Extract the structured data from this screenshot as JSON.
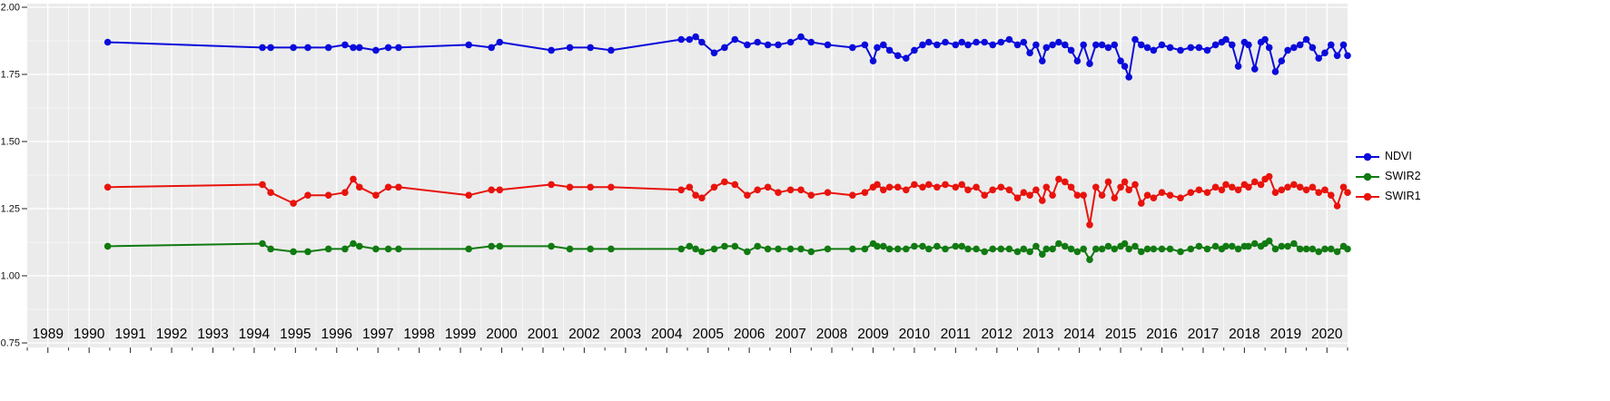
{
  "figure": {
    "bg": "#FFFFFF",
    "panel_bg": "#EBEBEB",
    "grid_major_color": "#FFFFFF",
    "grid_minor_color": "#F5F5F5",
    "tick_color": "#333333",
    "axis_label_color": "#111111",
    "x_label_color": "#000000"
  },
  "legend": {
    "items": [
      {
        "label": "NDVI",
        "color": "#0b0bdb"
      },
      {
        "label": "SWIR2",
        "color": "#117a11"
      },
      {
        "label": "SWIR1",
        "color": "#e8130c"
      }
    ]
  },
  "chart_data": {
    "type": "line",
    "title": "",
    "xlabel": "",
    "ylabel": "",
    "grid": true,
    "legend_position": "right",
    "ylim": [
      0.75,
      2.0
    ],
    "yticks": [
      0.75,
      1.0,
      1.25,
      1.5,
      1.75,
      2.0
    ],
    "x_tick_labels": [
      1989,
      1990,
      1991,
      1992,
      1993,
      1994,
      1995,
      1996,
      1997,
      1998,
      1999,
      2000,
      2001,
      2002,
      2003,
      2004,
      2005,
      2006,
      2007,
      2008,
      2009,
      2010,
      2011,
      2012,
      2013,
      2014,
      2015,
      2016,
      2017,
      2018,
      2019,
      2020
    ],
    "x": [
      1990.45,
      1994.2,
      1994.4,
      1994.95,
      1995.3,
      1995.8,
      1996.2,
      1996.4,
      1996.55,
      1996.95,
      1997.25,
      1997.5,
      1999.2,
      1999.75,
      1999.95,
      2001.2,
      2001.65,
      2002.15,
      2002.65,
      2004.35,
      2004.55,
      2004.7,
      2004.85,
      2005.15,
      2005.4,
      2005.65,
      2005.95,
      2006.2,
      2006.45,
      2006.7,
      2007.0,
      2007.25,
      2007.5,
      2007.9,
      2008.5,
      2008.8,
      2009.0,
      2009.1,
      2009.25,
      2009.4,
      2009.6,
      2009.8,
      2010.0,
      2010.2,
      2010.35,
      2010.55,
      2010.75,
      2011.0,
      2011.15,
      2011.3,
      2011.5,
      2011.7,
      2011.9,
      2012.1,
      2012.3,
      2012.5,
      2012.65,
      2012.8,
      2012.95,
      2013.1,
      2013.2,
      2013.35,
      2013.5,
      2013.65,
      2013.8,
      2013.95,
      2014.1,
      2014.25,
      2014.4,
      2014.55,
      2014.7,
      2014.85,
      2015.0,
      2015.1,
      2015.2,
      2015.35,
      2015.5,
      2015.65,
      2015.8,
      2016.0,
      2016.2,
      2016.45,
      2016.7,
      2016.9,
      2017.1,
      2017.3,
      2017.45,
      2017.55,
      2017.7,
      2017.85,
      2018.0,
      2018.1,
      2018.25,
      2018.4,
      2018.5,
      2018.6,
      2018.75,
      2018.9,
      2019.05,
      2019.2,
      2019.35,
      2019.5,
      2019.65,
      2019.8,
      2019.95,
      2020.1,
      2020.25,
      2020.4,
      2020.5
    ],
    "series": [
      {
        "name": "NDVI",
        "color": "#0b0bdb",
        "values": [
          1.87,
          1.85,
          1.85,
          1.85,
          1.85,
          1.85,
          1.86,
          1.85,
          1.85,
          1.84,
          1.85,
          1.85,
          1.86,
          1.85,
          1.87,
          1.84,
          1.85,
          1.85,
          1.84,
          1.88,
          1.88,
          1.89,
          1.87,
          1.83,
          1.85,
          1.88,
          1.86,
          1.87,
          1.86,
          1.86,
          1.87,
          1.89,
          1.87,
          1.86,
          1.85,
          1.86,
          1.8,
          1.85,
          1.86,
          1.84,
          1.82,
          1.81,
          1.84,
          1.86,
          1.87,
          1.86,
          1.87,
          1.86,
          1.87,
          1.86,
          1.87,
          1.87,
          1.86,
          1.87,
          1.88,
          1.86,
          1.87,
          1.83,
          1.86,
          1.8,
          1.85,
          1.86,
          1.87,
          1.86,
          1.84,
          1.8,
          1.86,
          1.79,
          1.86,
          1.86,
          1.85,
          1.86,
          1.8,
          1.78,
          1.74,
          1.88,
          1.86,
          1.85,
          1.84,
          1.86,
          1.85,
          1.84,
          1.85,
          1.85,
          1.84,
          1.86,
          1.87,
          1.88,
          1.86,
          1.78,
          1.87,
          1.86,
          1.77,
          1.87,
          1.88,
          1.85,
          1.76,
          1.8,
          1.84,
          1.85,
          1.86,
          1.88,
          1.85,
          1.81,
          1.83,
          1.86,
          1.82,
          1.86,
          1.82
        ]
      },
      {
        "name": "SWIR2",
        "color": "#117a11",
        "values": [
          1.11,
          1.12,
          1.1,
          1.09,
          1.09,
          1.1,
          1.1,
          1.12,
          1.11,
          1.1,
          1.1,
          1.1,
          1.1,
          1.11,
          1.11,
          1.11,
          1.1,
          1.1,
          1.1,
          1.1,
          1.11,
          1.1,
          1.09,
          1.1,
          1.11,
          1.11,
          1.09,
          1.11,
          1.1,
          1.1,
          1.1,
          1.1,
          1.09,
          1.1,
          1.1,
          1.1,
          1.12,
          1.11,
          1.11,
          1.1,
          1.1,
          1.1,
          1.11,
          1.11,
          1.1,
          1.11,
          1.1,
          1.11,
          1.11,
          1.1,
          1.1,
          1.09,
          1.1,
          1.1,
          1.1,
          1.09,
          1.1,
          1.09,
          1.11,
          1.08,
          1.1,
          1.1,
          1.12,
          1.11,
          1.1,
          1.09,
          1.1,
          1.06,
          1.1,
          1.1,
          1.11,
          1.1,
          1.11,
          1.12,
          1.1,
          1.11,
          1.09,
          1.1,
          1.1,
          1.1,
          1.1,
          1.09,
          1.1,
          1.11,
          1.1,
          1.11,
          1.1,
          1.11,
          1.11,
          1.1,
          1.11,
          1.11,
          1.12,
          1.11,
          1.12,
          1.13,
          1.1,
          1.11,
          1.11,
          1.12,
          1.1,
          1.1,
          1.1,
          1.09,
          1.1,
          1.1,
          1.09,
          1.11,
          1.1
        ]
      },
      {
        "name": "SWIR1",
        "color": "#e8130c",
        "values": [
          1.33,
          1.34,
          1.31,
          1.27,
          1.3,
          1.3,
          1.31,
          1.36,
          1.33,
          1.3,
          1.33,
          1.33,
          1.3,
          1.32,
          1.32,
          1.34,
          1.33,
          1.33,
          1.33,
          1.32,
          1.33,
          1.3,
          1.29,
          1.33,
          1.35,
          1.34,
          1.3,
          1.32,
          1.33,
          1.31,
          1.32,
          1.32,
          1.3,
          1.31,
          1.3,
          1.31,
          1.33,
          1.34,
          1.32,
          1.33,
          1.33,
          1.32,
          1.34,
          1.33,
          1.34,
          1.33,
          1.34,
          1.33,
          1.34,
          1.32,
          1.33,
          1.3,
          1.32,
          1.33,
          1.32,
          1.29,
          1.31,
          1.3,
          1.32,
          1.28,
          1.33,
          1.3,
          1.36,
          1.35,
          1.33,
          1.3,
          1.3,
          1.19,
          1.33,
          1.3,
          1.35,
          1.29,
          1.33,
          1.35,
          1.32,
          1.34,
          1.27,
          1.3,
          1.29,
          1.31,
          1.3,
          1.29,
          1.31,
          1.32,
          1.31,
          1.33,
          1.32,
          1.34,
          1.33,
          1.32,
          1.34,
          1.33,
          1.35,
          1.34,
          1.36,
          1.37,
          1.31,
          1.32,
          1.33,
          1.34,
          1.33,
          1.32,
          1.33,
          1.31,
          1.32,
          1.3,
          1.26,
          1.33,
          1.31
        ]
      }
    ]
  }
}
